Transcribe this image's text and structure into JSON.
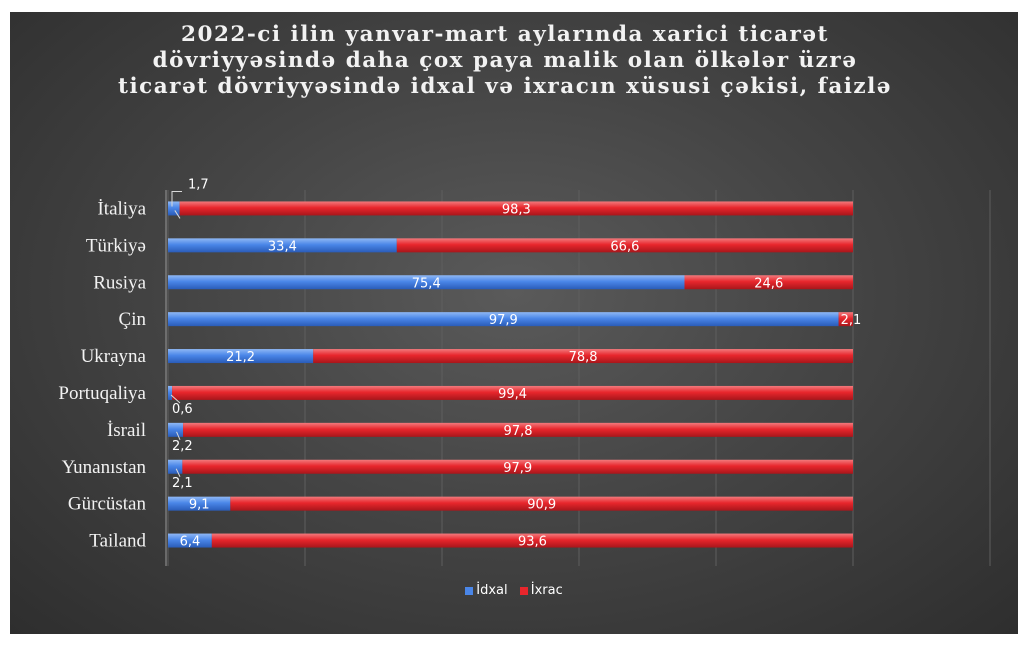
{
  "chart_data": {
    "type": "bar",
    "orientation": "horizontal",
    "stacked": true,
    "title": "2022-ci ilin yanvar-mart aylarında xarici ticarət dövriyyəsində daha çox paya malik olan ölkələr üzrə ticarət dövriyyəsində idxal və ixracın xüsusi çəkisi, faizlə",
    "categories": [
      "İtaliya",
      "Türkiyə",
      "Rusiya",
      "Çin",
      "Ukrayna",
      "Portuqaliya",
      "İsrail",
      "Yunanıstan",
      "Gürcüstan",
      "Tailand"
    ],
    "series": [
      {
        "name": "İdxal",
        "color": "#4a86e8",
        "values": [
          1.7,
          33.4,
          75.4,
          97.9,
          21.2,
          0.6,
          2.2,
          2.1,
          9.1,
          6.4
        ]
      },
      {
        "name": "İxrac",
        "color": "#e8262c",
        "values": [
          98.3,
          66.6,
          24.6,
          2.1,
          78.8,
          99.4,
          97.8,
          97.9,
          90.9,
          93.6
        ]
      }
    ],
    "value_labels": {
      "İdxal": [
        "1,7",
        "33,4",
        "75,4",
        "97,9",
        "21,2",
        "0,6",
        "2,2",
        "2,1",
        "9,1",
        "6,4"
      ],
      "İxrac": [
        "98,3",
        "66,6",
        "24,6",
        "2,1",
        "78,8",
        "99,4",
        "97,8",
        "97,9",
        "90,9",
        "93,6"
      ]
    },
    "xlim": [
      0,
      100
    ],
    "grid": true,
    "legend_position": "bottom"
  }
}
